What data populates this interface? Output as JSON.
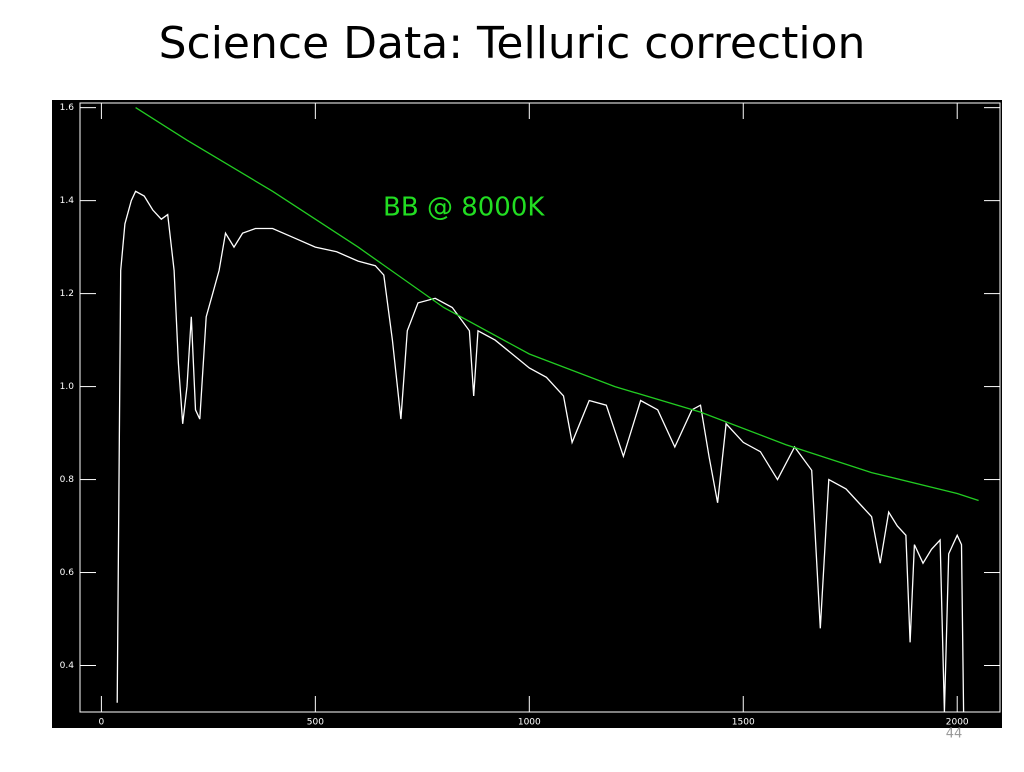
{
  "page_number": "44",
  "chart_data": {
    "type": "line",
    "title": "Science Data: Telluric correction",
    "annotations": [
      {
        "text": "BB @ 8000K",
        "color": "#22dd22"
      }
    ],
    "xlim": [
      -50,
      2100
    ],
    "ylim": [
      0.3,
      1.61
    ],
    "xticks": [
      0,
      500,
      1000,
      1500,
      2000
    ],
    "yticks": [
      0.4,
      0.6,
      0.8,
      {
        "value": 1,
        "label": "1.0"
      },
      1.2,
      1.4,
      1.6
    ],
    "series": [
      {
        "color": "#ffffff",
        "x": [
          37,
          45,
          55,
          70,
          80,
          100,
          120,
          140,
          155,
          170,
          180,
          190,
          200,
          210,
          220,
          230,
          245,
          260,
          275,
          290,
          310,
          330,
          360,
          400,
          450,
          500,
          550,
          600,
          640,
          660,
          680,
          700,
          715,
          740,
          780,
          820,
          860,
          870,
          880,
          920,
          960,
          1000,
          1040,
          1080,
          1100,
          1140,
          1180,
          1220,
          1260,
          1300,
          1340,
          1380,
          1400,
          1420,
          1440,
          1460,
          1480,
          1500,
          1540,
          1580,
          1620,
          1660,
          1680,
          1700,
          1740,
          1780,
          1800,
          1820,
          1840,
          1860,
          1880,
          1890,
          1900,
          1920,
          1940,
          1960,
          1970,
          1980,
          1990,
          2000,
          2010,
          2015
        ],
        "values": [
          0.32,
          1.25,
          1.35,
          1.4,
          1.42,
          1.41,
          1.38,
          1.36,
          1.37,
          1.25,
          1.05,
          0.92,
          1.0,
          1.15,
          0.95,
          0.93,
          1.15,
          1.2,
          1.25,
          1.33,
          1.3,
          1.33,
          1.34,
          1.34,
          1.32,
          1.3,
          1.29,
          1.27,
          1.26,
          1.24,
          1.1,
          0.93,
          1.12,
          1.18,
          1.19,
          1.17,
          1.12,
          0.98,
          1.12,
          1.1,
          1.07,
          1.04,
          1.02,
          0.98,
          0.88,
          0.97,
          0.96,
          0.85,
          0.97,
          0.95,
          0.87,
          0.95,
          0.96,
          0.85,
          0.75,
          0.92,
          0.9,
          0.88,
          0.86,
          0.8,
          0.87,
          0.82,
          0.48,
          0.8,
          0.78,
          0.74,
          0.72,
          0.62,
          0.73,
          0.7,
          0.68,
          0.45,
          0.66,
          0.62,
          0.65,
          0.67,
          0.3,
          0.64,
          0.66,
          0.68,
          0.66,
          0.3
        ]
      },
      {
        "color": "#22cc22",
        "x": [
          80,
          200,
          400,
          600,
          800,
          1000,
          1200,
          1400,
          1600,
          1800,
          2000,
          2050
        ],
        "values": [
          1.6,
          1.53,
          1.42,
          1.3,
          1.17,
          1.07,
          1.0,
          0.945,
          0.875,
          0.815,
          0.77,
          0.755
        ]
      }
    ]
  }
}
